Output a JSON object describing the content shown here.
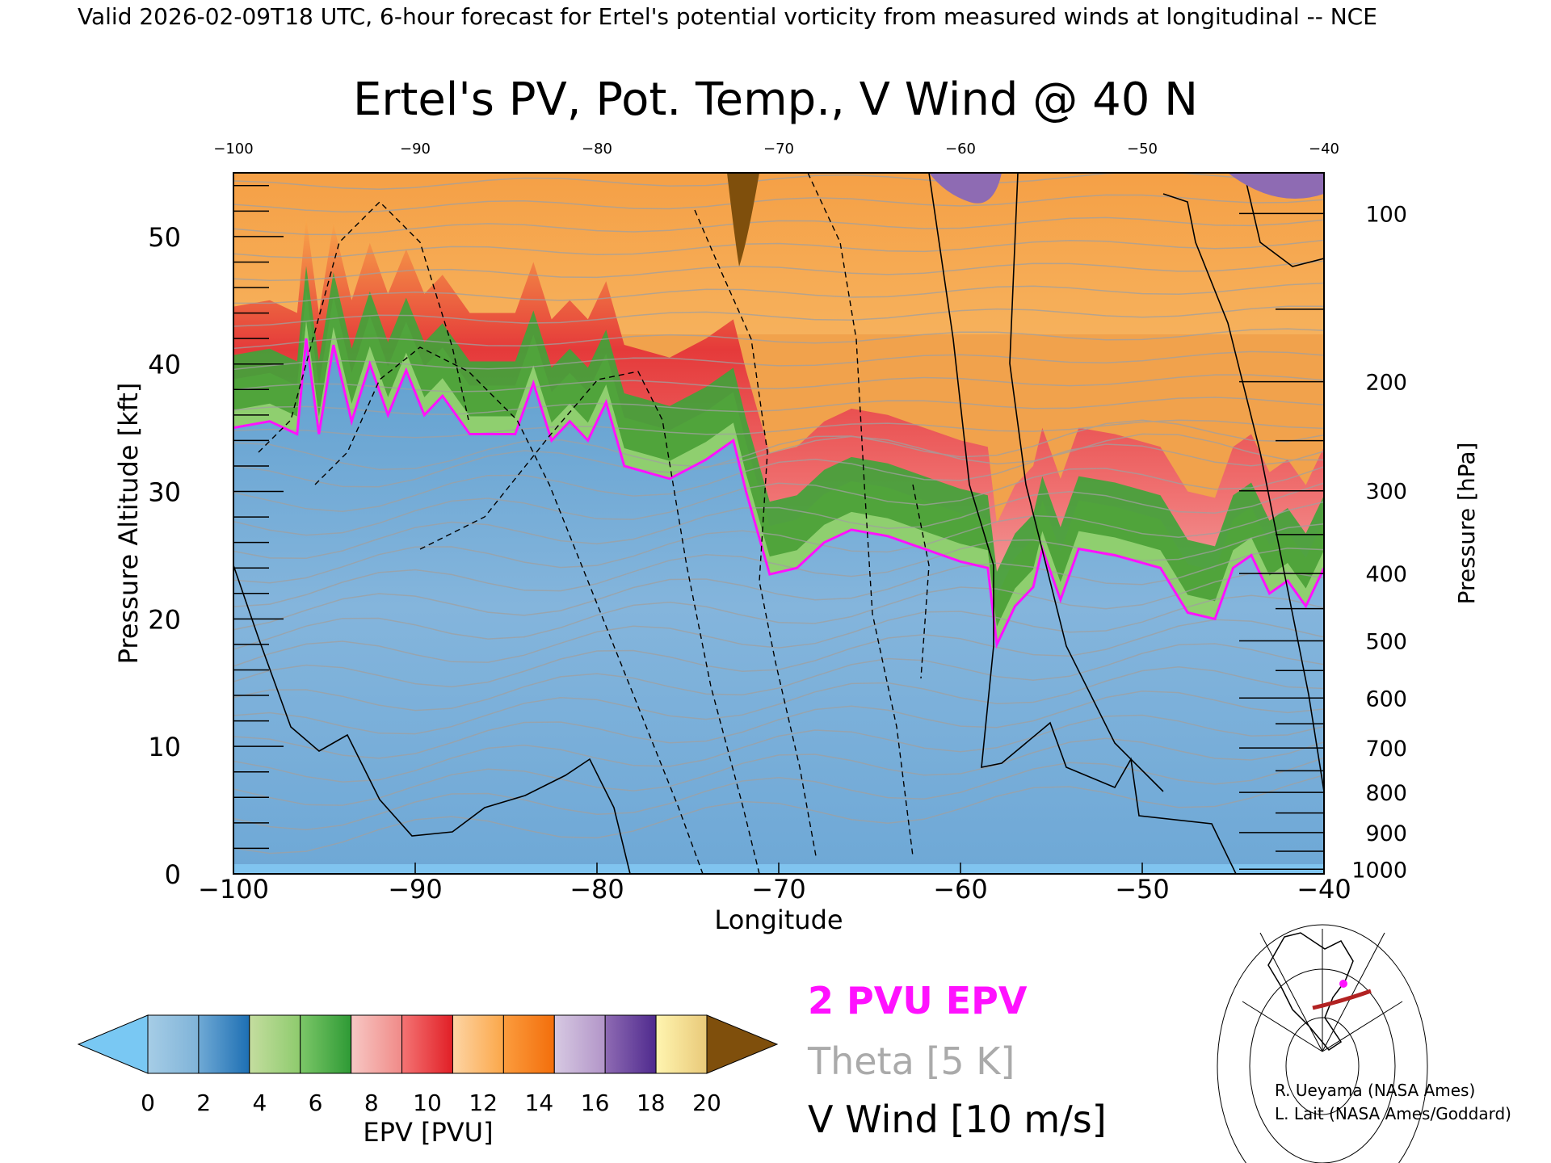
{
  "header": {
    "valid_line": "Valid 2026-02-09T18 UTC, 6-hour forecast for Ertel's potential vorticity from measured winds at longitudinal -- NCE"
  },
  "chart_data": {
    "type": "heatmap",
    "title": "Ertel's PV, Pot. Temp., V Wind @ 40 N",
    "xlabel": "Longitude",
    "ylabel_left": "Pressure Altitude [kft]",
    "ylabel_right": "Pressure [hPa]",
    "xlim": [
      -100,
      -40
    ],
    "ylim_kft": [
      0,
      55
    ],
    "x_ticks": [
      "-100",
      "-90",
      "-80",
      "-70",
      "-60",
      "-50",
      "-40"
    ],
    "x_ticks_top": [
      "-100",
      "-90",
      "-80",
      "-70",
      "-60",
      "-50",
      "-40"
    ],
    "y_ticks_left": [
      "0",
      "10",
      "20",
      "30",
      "40",
      "50"
    ],
    "y_ticks_right": [
      "100",
      "200",
      "300",
      "400",
      "500",
      "600",
      "700",
      "800",
      "900",
      "1000"
    ],
    "right_axis_pressures": [
      100,
      200,
      300,
      400,
      500,
      600,
      700,
      800,
      900,
      1000
    ],
    "tropopause_2pvu_kft": [
      [
        -100,
        35
      ],
      [
        -98,
        35.5
      ],
      [
        -96.5,
        34.5
      ],
      [
        -96,
        42
      ],
      [
        -95.3,
        34.5
      ],
      [
        -94.5,
        41.5
      ],
      [
        -93.5,
        35.5
      ],
      [
        -92.5,
        40
      ],
      [
        -91.5,
        36
      ],
      [
        -90.5,
        39.5
      ],
      [
        -89.5,
        36
      ],
      [
        -88.5,
        37.5
      ],
      [
        -87,
        34.5
      ],
      [
        -84.5,
        34.5
      ],
      [
        -83.5,
        38.5
      ],
      [
        -82.5,
        34
      ],
      [
        -81.5,
        35.5
      ],
      [
        -80.5,
        34
      ],
      [
        -79.5,
        37
      ],
      [
        -78.5,
        32
      ],
      [
        -76,
        31
      ],
      [
        -74,
        32.5
      ],
      [
        -72.5,
        34
      ],
      [
        -71.8,
        30
      ],
      [
        -70.5,
        23.5
      ],
      [
        -69,
        24
      ],
      [
        -67.5,
        26
      ],
      [
        -66,
        27
      ],
      [
        -64,
        26.5
      ],
      [
        -62,
        25.5
      ],
      [
        -60,
        24.5
      ],
      [
        -58.5,
        24
      ],
      [
        -58,
        18
      ],
      [
        -57,
        21
      ],
      [
        -56,
        22.5
      ],
      [
        -55.5,
        25.5
      ],
      [
        -54.5,
        21.5
      ],
      [
        -53.5,
        25.5
      ],
      [
        -51.5,
        25
      ],
      [
        -49,
        24
      ],
      [
        -47.5,
        20.5
      ],
      [
        -46,
        20
      ],
      [
        -45,
        24
      ],
      [
        -44,
        25
      ],
      [
        -43,
        22
      ],
      [
        -42,
        23
      ],
      [
        -41,
        21
      ],
      [
        -40,
        24
      ]
    ],
    "colorbar": {
      "label": "EPV [PVU]",
      "ticks": [
        "0",
        "2",
        "4",
        "6",
        "8",
        "10",
        "12",
        "14",
        "16",
        "18",
        "20"
      ],
      "under_color": "#79c8f3",
      "over_color": "#7f4f0c",
      "bin_colors": [
        [
          "#a6cde6",
          "#7fb3d8"
        ],
        [
          "#6fa9d5",
          "#1d6fb3"
        ],
        [
          "#c4dd9f",
          "#8ecb6d"
        ],
        [
          "#7cc768",
          "#2e9a35"
        ],
        [
          "#f7c8c4",
          "#f08a88"
        ],
        [
          "#f47474",
          "#e11f26"
        ],
        [
          "#fdd4a4",
          "#fba749"
        ],
        [
          "#fb9c3e",
          "#f36e0b"
        ],
        [
          "#d7c9e2",
          "#b295c8"
        ],
        [
          "#8e6bb3",
          "#4f2a8e"
        ],
        [
          "#fff5b0",
          "#e9c979"
        ]
      ]
    }
  },
  "legend": {
    "items": [
      {
        "label": "2 PVU EPV",
        "color": "#ff11ff"
      },
      {
        "label": "Theta [5 K]",
        "color": "#aaaaaa"
      },
      {
        "label": "V Wind [10 m/s]",
        "color": "#000000"
      }
    ]
  },
  "credits": {
    "line1": "R. Ueyama (NASA Ames)",
    "line2": "L. Lait (NASA Ames/Goddard)"
  },
  "inset_map": {
    "icon": "globe-locator-map-icon",
    "section_color": "#b22222",
    "marker_color": "#ff11ff"
  }
}
